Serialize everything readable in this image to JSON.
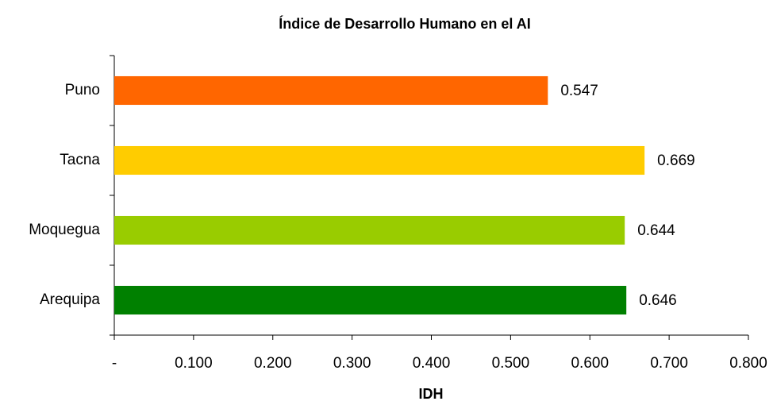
{
  "chart_data": {
    "type": "bar",
    "orientation": "horizontal",
    "title": "Índice de Desarrollo Humano en el AI",
    "x_label": "IDH",
    "categories": [
      "Puno",
      "Tacna",
      "Moquegua",
      "Arequipa"
    ],
    "values": [
      0.547,
      0.669,
      0.644,
      0.646
    ],
    "colors": [
      "#ff6600",
      "#ffcc00",
      "#99cc00",
      "#008000"
    ],
    "xlim": [
      0,
      0.8
    ],
    "xticks": [
      {
        "value": 0,
        "label": "-"
      },
      {
        "value": 0.1,
        "label": "0.100"
      },
      {
        "value": 0.2,
        "label": "0.200"
      },
      {
        "value": 0.3,
        "label": "0.300"
      },
      {
        "value": 0.4,
        "label": "0.400"
      },
      {
        "value": 0.5,
        "label": "0.500"
      },
      {
        "value": 0.6,
        "label": "0.600"
      },
      {
        "value": 0.7,
        "label": "0.700"
      },
      {
        "value": 0.8,
        "label": "0.800"
      }
    ],
    "grid": false
  }
}
